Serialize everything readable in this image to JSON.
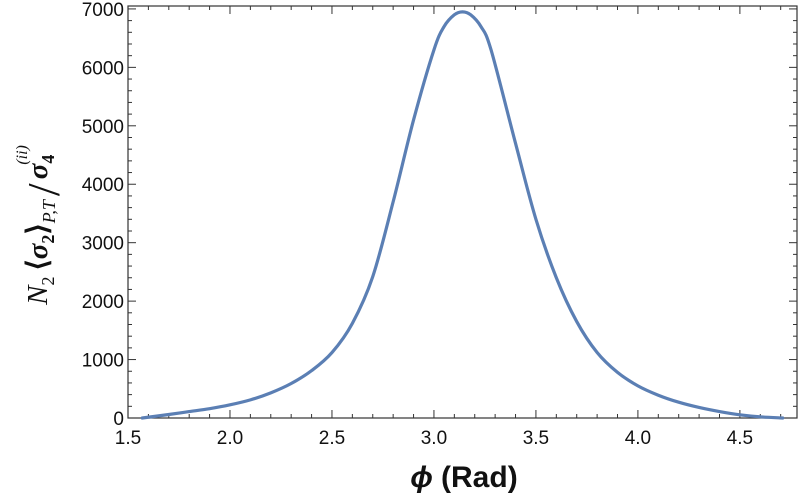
{
  "chart_data": {
    "type": "line",
    "title": "",
    "xlabel_symbol": "ϕ",
    "xlabel_unit": "(Rad)",
    "ylabel": {
      "N": "N",
      "N_sub": "2",
      "lt": "⟨",
      "sigma": "σ",
      "sigma_sub": "2",
      "gt": "⟩",
      "bracket_sub": "P,T",
      "slash": "/",
      "sigma4": "σ",
      "sigma4_sub": "4",
      "sigma4_sup": "(ii)"
    },
    "xlim": [
      1.5,
      4.78
    ],
    "ylim": [
      0,
      7050
    ],
    "xticks": [
      1.5,
      2.0,
      2.5,
      3.0,
      3.5,
      4.0,
      4.5
    ],
    "xtick_labels": [
      "1.5",
      "2.0",
      "2.5",
      "3.0",
      "3.5",
      "4.0",
      "4.5"
    ],
    "yticks": [
      0,
      1000,
      2000,
      3000,
      4000,
      5000,
      6000,
      7000
    ],
    "ytick_labels": [
      "0",
      "1000",
      "2000",
      "3000",
      "4000",
      "5000",
      "6000",
      "7000"
    ],
    "grid": false,
    "series": [
      {
        "color": "#5B7FB4",
        "x": [
          1.57,
          1.7,
          1.8,
          1.9,
          2.0,
          2.1,
          2.2,
          2.3,
          2.4,
          2.5,
          2.6,
          2.7,
          2.8,
          2.9,
          3.0,
          3.05,
          3.1,
          3.14,
          3.18,
          3.23,
          3.28,
          3.4,
          3.5,
          3.6,
          3.7,
          3.8,
          3.9,
          4.0,
          4.1,
          4.2,
          4.3,
          4.4,
          4.5,
          4.6,
          4.71
        ],
        "y": [
          0,
          60,
          110,
          160,
          225,
          310,
          430,
          590,
          810,
          1120,
          1620,
          2420,
          3700,
          5100,
          6300,
          6700,
          6900,
          6950,
          6900,
          6700,
          6300,
          4700,
          3400,
          2400,
          1650,
          1120,
          780,
          550,
          390,
          270,
          180,
          110,
          55,
          20,
          0
        ]
      }
    ]
  }
}
